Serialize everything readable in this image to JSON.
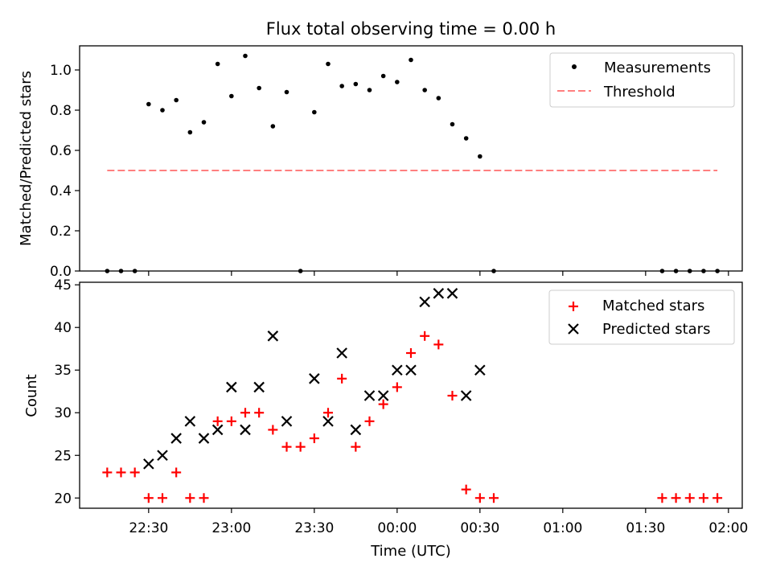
{
  "chart_data": [
    {
      "type": "scatter",
      "title": "Flux total observing time = 0.00 h",
      "xlabel": "",
      "ylabel": "Matched/Predicted stars",
      "xlim": [
        "22:05",
        "02:05"
      ],
      "ylim": [
        0,
        1.12
      ],
      "yticks": [
        "0.0",
        "0.2",
        "0.4",
        "0.6",
        "0.8",
        "1.0"
      ],
      "ytick_values": [
        0,
        0.2,
        0.4,
        0.6,
        0.8,
        1.0
      ],
      "legend_position": "upper right",
      "series": [
        {
          "name": "Measurements",
          "marker": "dot",
          "color": "#000000",
          "x": [
            "22:15",
            "22:20",
            "22:25",
            "22:30",
            "22:35",
            "22:40",
            "22:45",
            "22:50",
            "22:55",
            "23:00",
            "23:05",
            "23:10",
            "23:15",
            "23:20",
            "23:25",
            "23:30",
            "23:35",
            "23:40",
            "23:45",
            "23:50",
            "23:55",
            "00:00",
            "00:05",
            "00:10",
            "00:15",
            "00:20",
            "00:25",
            "00:30",
            "00:35",
            "01:36",
            "01:41",
            "01:46",
            "01:51",
            "01:56"
          ],
          "y": [
            0,
            0,
            0,
            0.83,
            0.8,
            0.85,
            0.69,
            0.74,
            1.03,
            0.87,
            1.07,
            0.91,
            0.72,
            0.89,
            0,
            0.79,
            1.03,
            0.92,
            0.93,
            0.9,
            0.97,
            0.94,
            1.05,
            0.9,
            0.86,
            0.73,
            0.66,
            0.57,
            0,
            0,
            0,
            0,
            0,
            0
          ]
        },
        {
          "name": "Threshold",
          "style": "dashed",
          "color": "#ff7f7f",
          "x": [
            "22:15",
            "01:56"
          ],
          "y": [
            0.5,
            0.5
          ]
        }
      ]
    },
    {
      "type": "scatter",
      "title": "",
      "xlabel": "Time (UTC)",
      "ylabel": "Count",
      "xlim": [
        "22:05",
        "02:05"
      ],
      "ylim": [
        18.8,
        45.3
      ],
      "yticks": [
        "20",
        "25",
        "30",
        "35",
        "40",
        "45"
      ],
      "ytick_values": [
        20,
        25,
        30,
        35,
        40,
        45
      ],
      "xticks": [
        "22:30",
        "23:00",
        "23:30",
        "00:00",
        "00:30",
        "01:00",
        "01:30",
        "02:00"
      ],
      "legend_position": "upper right",
      "series": [
        {
          "name": "Matched stars",
          "marker": "plus",
          "color": "#ff0000",
          "x": [
            "22:15",
            "22:20",
            "22:25",
            "22:30",
            "22:35",
            "22:40",
            "22:45",
            "22:50",
            "22:55",
            "23:00",
            "23:05",
            "23:10",
            "23:15",
            "23:20",
            "23:25",
            "23:30",
            "23:35",
            "23:40",
            "23:45",
            "23:50",
            "23:55",
            "00:00",
            "00:05",
            "00:10",
            "00:15",
            "00:20",
            "00:25",
            "00:30",
            "00:35",
            "01:36",
            "01:41",
            "01:46",
            "01:51",
            "01:56"
          ],
          "y": [
            23,
            23,
            23,
            20,
            20,
            23,
            20,
            20,
            29,
            29,
            30,
            30,
            28,
            26,
            26,
            27,
            30,
            34,
            26,
            29,
            31,
            33,
            37,
            39,
            38,
            32,
            21,
            20,
            20,
            20,
            20,
            20,
            20,
            20
          ]
        },
        {
          "name": "Predicted stars",
          "marker": "x",
          "color": "#000000",
          "x": [
            "22:30",
            "22:35",
            "22:40",
            "22:45",
            "22:50",
            "22:55",
            "23:00",
            "23:05",
            "23:10",
            "23:15",
            "23:20",
            "23:30",
            "23:35",
            "23:40",
            "23:45",
            "23:50",
            "23:55",
            "00:00",
            "00:05",
            "00:10",
            "00:15",
            "00:20",
            "00:25",
            "00:30"
          ],
          "y": [
            24,
            25,
            27,
            29,
            27,
            28,
            33,
            28,
            33,
            39,
            29,
            34,
            29,
            37,
            28,
            32,
            32,
            35,
            35,
            43,
            44,
            44,
            32,
            35
          ]
        }
      ]
    }
  ]
}
